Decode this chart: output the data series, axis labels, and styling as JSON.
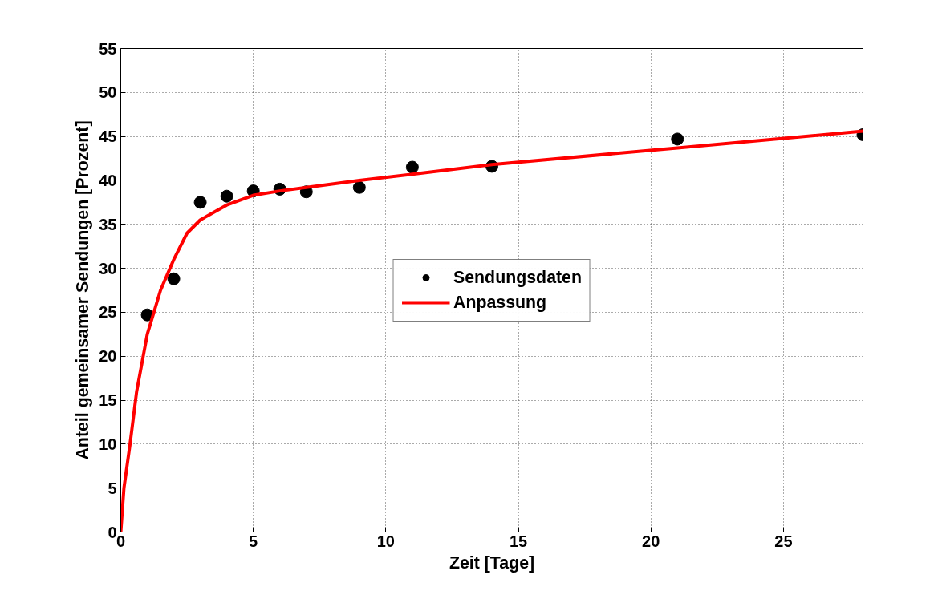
{
  "chart_data": {
    "type": "scatter",
    "xlabel": "Zeit [Tage]",
    "ylabel": "Anteil gemeinsamer Sendungen [Prozent]",
    "xlim": [
      0,
      28
    ],
    "ylim": [
      0,
      55
    ],
    "xticks": [
      0,
      5,
      10,
      15,
      20,
      25
    ],
    "yticks": [
      0,
      5,
      10,
      15,
      20,
      25,
      30,
      35,
      40,
      45,
      50,
      55
    ],
    "grid": true,
    "legend": "center",
    "series": [
      {
        "name": "Sendungsdaten",
        "marker": "circle",
        "color": "#000000",
        "x": [
          1,
          2,
          3,
          4,
          5,
          6,
          7,
          9,
          11,
          14,
          21,
          28
        ],
        "values": [
          24.7,
          28.8,
          37.5,
          38.2,
          38.8,
          39.0,
          38.7,
          39.2,
          41.5,
          41.6,
          44.7,
          45.2
        ]
      },
      {
        "name": "Anpassung",
        "type": "line",
        "color": "#ff0000",
        "line_style": "solid",
        "x": [
          0,
          0.12,
          0.35,
          0.6,
          1,
          1.5,
          2,
          2.5,
          3,
          4,
          5,
          6,
          7,
          9,
          11,
          14,
          21,
          28
        ],
        "values": [
          0,
          5,
          10,
          16,
          22.5,
          27.5,
          31,
          34,
          35.5,
          37.2,
          38.3,
          38.8,
          39.2,
          40,
          40.7,
          41.8,
          43.7,
          45.6
        ]
      }
    ]
  }
}
